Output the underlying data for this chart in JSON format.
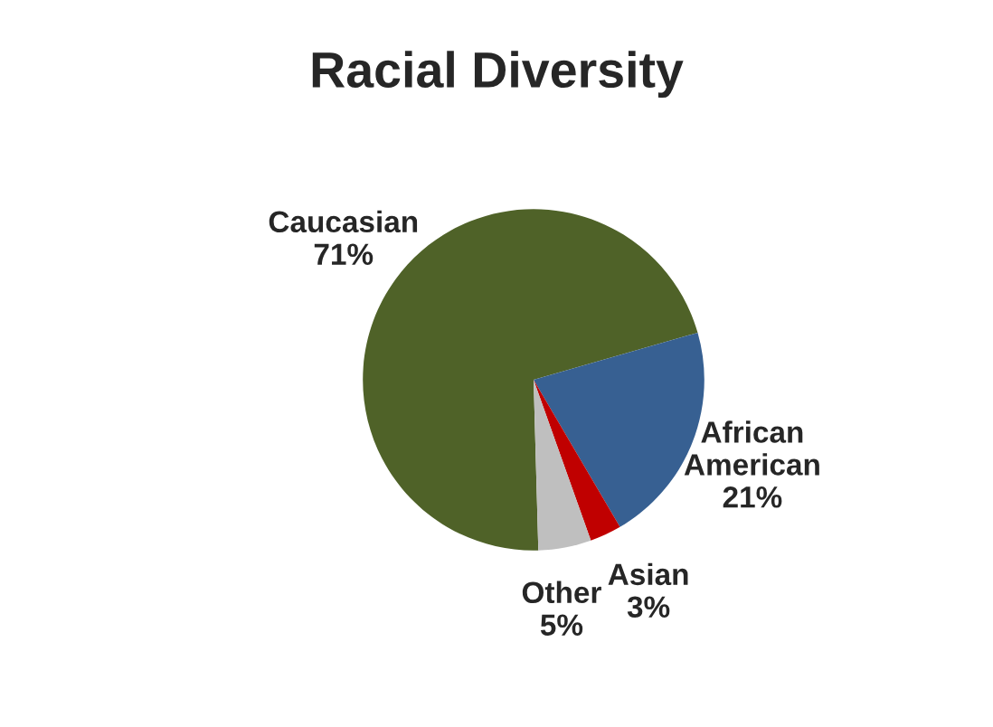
{
  "chart_data": {
    "type": "pie",
    "title": "Racial Diversity",
    "categories": [
      "Caucasian",
      "African American",
      "Asian",
      "Other"
    ],
    "values": [
      71,
      21,
      3,
      5
    ],
    "colors": [
      "#4f6228",
      "#376092",
      "#c00000",
      "#bfbfbf"
    ],
    "value_labels": [
      "71%",
      "21%",
      "3%",
      "5%"
    ],
    "legend": false
  }
}
